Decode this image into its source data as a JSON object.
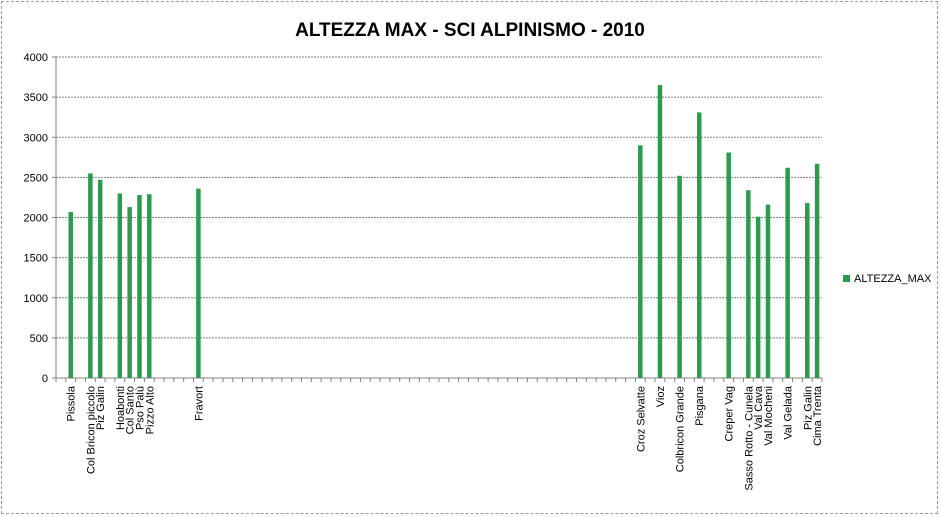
{
  "chart_data": {
    "type": "bar",
    "title": "ALTEZZA MAX - SCI ALPINISMO - 2010",
    "xlabel": "",
    "ylabel": "",
    "ylim": [
      0,
      4000
    ],
    "yticks": [
      0,
      500,
      1000,
      1500,
      2000,
      2500,
      3000,
      3500,
      4000
    ],
    "grid": true,
    "legend": "right",
    "series": [
      {
        "name": "ALTEZZA_MAX",
        "color": "#2e9a4f",
        "categories": [
          "",
          "Pissola",
          "",
          "Col Bricon piccolo",
          "Piz Galin",
          "",
          "Hoabonti",
          "Col Santo",
          "Pso Palù",
          "Pizzo Alto",
          "",
          "",
          "",
          "",
          "Fravort",
          "",
          "",
          "",
          "",
          "",
          "",
          "",
          "",
          "",
          "",
          "",
          "",
          "",
          "",
          "",
          "",
          "",
          "",
          "",
          "",
          "",
          "",
          "",
          "",
          "",
          "",
          "",
          "",
          "",
          "",
          "",
          "",
          "",
          "",
          "",
          "",
          "",
          "",
          "",
          "",
          "",
          "",
          "",
          "",
          "Croz Selvatte",
          "",
          "Vioz",
          "",
          "Colbricon Grande",
          "",
          "Pisgana",
          "",
          "",
          "Creper Vag",
          "",
          "Sasso Rotto - Cunela",
          "Val Cava",
          "Val Mocheni",
          "",
          "Val Gelada",
          "",
          "Piz Galin",
          "Cima Trenta"
        ],
        "values": [
          null,
          2070,
          null,
          2550,
          2470,
          null,
          2300,
          2130,
          2280,
          2290,
          null,
          null,
          null,
          null,
          2360,
          null,
          null,
          null,
          null,
          null,
          null,
          null,
          null,
          null,
          null,
          null,
          null,
          null,
          null,
          null,
          null,
          null,
          null,
          null,
          null,
          null,
          null,
          null,
          null,
          null,
          null,
          null,
          null,
          null,
          null,
          null,
          null,
          null,
          null,
          null,
          null,
          null,
          null,
          null,
          null,
          null,
          null,
          null,
          null,
          2900,
          null,
          3650,
          null,
          2520,
          null,
          3310,
          null,
          null,
          2810,
          null,
          2340,
          2010,
          2160,
          null,
          2620,
          null,
          2180,
          2670
        ]
      }
    ]
  }
}
